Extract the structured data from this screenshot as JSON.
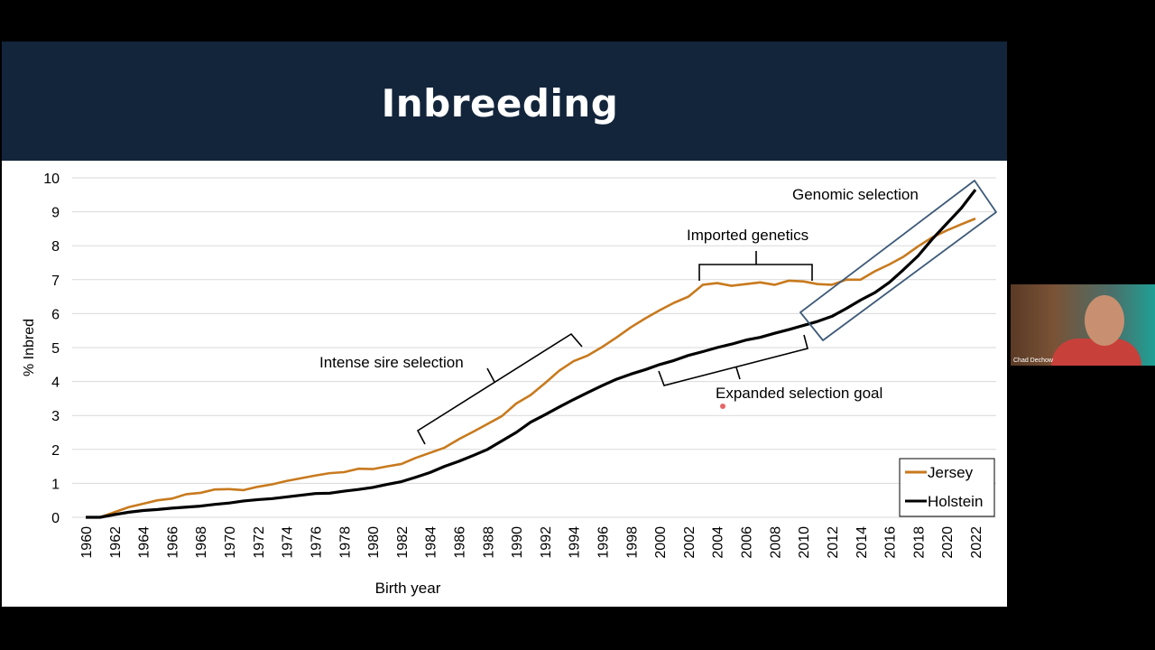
{
  "slide": {
    "title": "Inbreeding"
  },
  "participant": {
    "name": "Chad Dechow"
  },
  "chart_data": {
    "type": "line",
    "title": "",
    "xlabel": "Birth year",
    "ylabel": "% Inbred",
    "xlim": [
      1960,
      2022
    ],
    "ylim": [
      0,
      10
    ],
    "yticks": [
      "0",
      "1",
      "2",
      "3",
      "4",
      "5",
      "6",
      "7",
      "8",
      "9",
      "10"
    ],
    "xticks": [
      "1960",
      "1962",
      "1964",
      "1966",
      "1968",
      "1970",
      "1972",
      "1974",
      "1976",
      "1978",
      "1980",
      "1982",
      "1984",
      "1986",
      "1988",
      "1990",
      "1992",
      "1994",
      "1996",
      "1998",
      "2000",
      "2002",
      "2004",
      "2006",
      "2008",
      "2010",
      "2012",
      "2014",
      "2016",
      "2018",
      "2020",
      "2022"
    ],
    "grid": "horizontal",
    "legend_position": "bottom-right",
    "x": [
      1960,
      1961,
      1962,
      1963,
      1964,
      1965,
      1966,
      1967,
      1968,
      1969,
      1970,
      1971,
      1972,
      1973,
      1974,
      1975,
      1976,
      1977,
      1978,
      1979,
      1980,
      1981,
      1982,
      1983,
      1984,
      1985,
      1986,
      1987,
      1988,
      1989,
      1990,
      1991,
      1992,
      1993,
      1994,
      1995,
      1996,
      1997,
      1998,
      1999,
      2000,
      2001,
      2002,
      2003,
      2004,
      2005,
      2006,
      2007,
      2008,
      2009,
      2010,
      2011,
      2012,
      2013,
      2014,
      2015,
      2016,
      2017,
      2018,
      2019,
      2020,
      2021,
      2022
    ],
    "series": [
      {
        "name": "Jersey",
        "color": "#c87a1e",
        "values": [
          0,
          0,
          0.15,
          0.3,
          0.4,
          0.5,
          0.55,
          0.68,
          0.72,
          0.82,
          0.83,
          0.8,
          0.9,
          0.97,
          1.07,
          1.15,
          1.23,
          1.3,
          1.33,
          1.43,
          1.42,
          1.5,
          1.57,
          1.75,
          1.9,
          2.05,
          2.3,
          2.52,
          2.75,
          2.98,
          3.35,
          3.6,
          3.95,
          4.32,
          4.6,
          4.77,
          5.02,
          5.3,
          5.6,
          5.86,
          6.1,
          6.32,
          6.5,
          6.85,
          6.9,
          6.82,
          6.87,
          6.92,
          6.85,
          6.97,
          6.95,
          6.87,
          6.85,
          7.0,
          7.0,
          7.25,
          7.45,
          7.68,
          7.98,
          8.25,
          8.45,
          8.63,
          8.8
        ]
      },
      {
        "name": "Holstein",
        "color": "#000000",
        "values": [
          0,
          0,
          0.08,
          0.15,
          0.2,
          0.23,
          0.27,
          0.3,
          0.33,
          0.38,
          0.42,
          0.48,
          0.52,
          0.55,
          0.6,
          0.65,
          0.7,
          0.71,
          0.77,
          0.82,
          0.88,
          0.97,
          1.05,
          1.18,
          1.32,
          1.5,
          1.65,
          1.82,
          2.0,
          2.25,
          2.5,
          2.8,
          3.02,
          3.25,
          3.47,
          3.68,
          3.88,
          4.07,
          4.22,
          4.35,
          4.5,
          4.62,
          4.77,
          4.88,
          5.0,
          5.1,
          5.22,
          5.3,
          5.42,
          5.53,
          5.65,
          5.77,
          5.92,
          6.15,
          6.4,
          6.62,
          6.92,
          7.3,
          7.7,
          8.2,
          8.65,
          9.1,
          9.65
        ]
      }
    ],
    "annotations": [
      {
        "text": "Intense sire selection",
        "period": [
          1984,
          1995
        ]
      },
      {
        "text": "Imported genetics",
        "period": [
          2003,
          2010
        ]
      },
      {
        "text": "Expanded selection goal",
        "period": [
          2000,
          2010
        ]
      },
      {
        "text": "Genomic selection",
        "period": [
          2010,
          2022
        ]
      }
    ],
    "box_color": "#3d5a78"
  }
}
